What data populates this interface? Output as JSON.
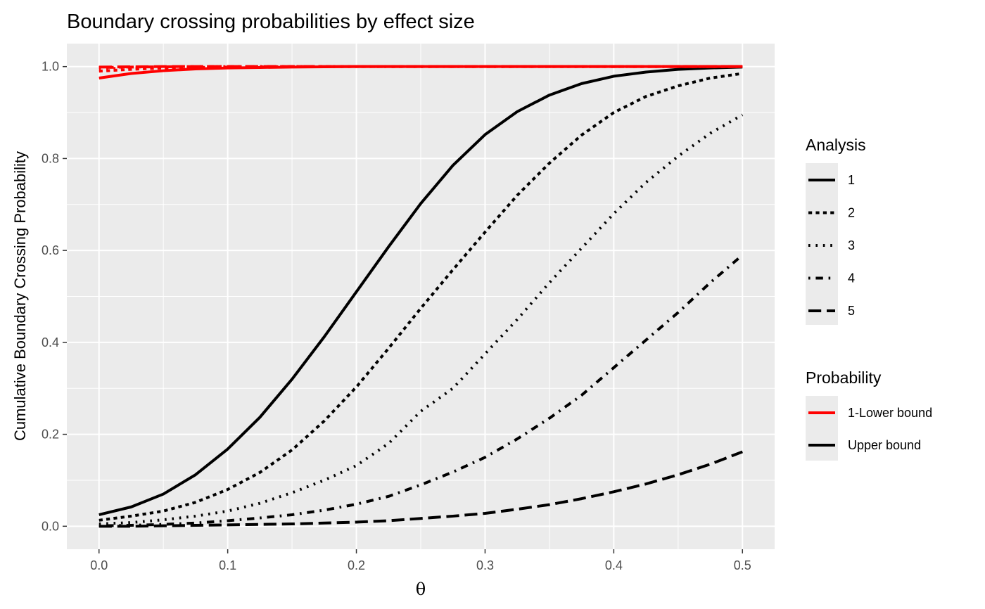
{
  "chart_data": {
    "type": "line",
    "title": "Boundary crossing probabilities by effect size",
    "xlabel": "θ",
    "ylabel": "Cumulative Boundary Crossing Probability",
    "xlim": [
      -0.025,
      0.525
    ],
    "ylim": [
      -0.05,
      1.05
    ],
    "x_ticks": [
      0.0,
      0.1,
      0.2,
      0.3,
      0.4,
      0.5
    ],
    "x_tick_labels": [
      "0.0",
      "0.1",
      "0.2",
      "0.3",
      "0.4",
      "0.5"
    ],
    "y_ticks": [
      0.0,
      0.2,
      0.4,
      0.6,
      0.8,
      1.0
    ],
    "y_tick_labels": [
      "0.0",
      "0.2",
      "0.4",
      "0.6",
      "0.8",
      "1.0"
    ],
    "grid": true,
    "x": [
      0,
      0.025,
      0.05,
      0.075,
      0.1,
      0.125,
      0.15,
      0.175,
      0.2,
      0.225,
      0.25,
      0.275,
      0.3,
      0.325,
      0.35,
      0.375,
      0.4,
      0.425,
      0.45,
      0.475,
      0.5
    ],
    "legend": {
      "position": "right",
      "analysis_title": "Analysis",
      "analysis_items": [
        "1",
        "2",
        "3",
        "4",
        "5"
      ],
      "probability_title": "Probability",
      "probability_items": [
        "1-Lower bound",
        "Upper bound"
      ]
    },
    "colors": {
      "lower": "#ff0000",
      "upper": "#000000",
      "panel": "#ebebeb",
      "grid": "#ffffff"
    },
    "series": [
      {
        "name": "1",
        "probability": "Upper bound",
        "linetype": "solid",
        "values": [
          0.025,
          0.042,
          0.07,
          0.112,
          0.168,
          0.237,
          0.32,
          0.412,
          0.51,
          0.608,
          0.702,
          0.785,
          0.852,
          0.902,
          0.938,
          0.963,
          0.979,
          0.988,
          0.994,
          0.997,
          0.999
        ]
      },
      {
        "name": "2",
        "probability": "Upper bound",
        "linetype": "22",
        "values": [
          0.013,
          0.022,
          0.033,
          0.052,
          0.08,
          0.117,
          0.166,
          0.229,
          0.303,
          0.387,
          0.474,
          0.558,
          0.64,
          0.72,
          0.79,
          0.851,
          0.9,
          0.935,
          0.958,
          0.975,
          0.985
        ]
      },
      {
        "name": "3",
        "probability": "Upper bound",
        "linetype": "13",
        "values": [
          0.005,
          0.008,
          0.014,
          0.022,
          0.033,
          0.05,
          0.073,
          0.1,
          0.132,
          0.18,
          0.25,
          0.3,
          0.375,
          0.45,
          0.53,
          0.605,
          0.68,
          0.748,
          0.805,
          0.855,
          0.895
        ]
      },
      {
        "name": "4",
        "probability": "Upper bound",
        "linetype": "1343",
        "values": [
          0.001,
          0.002,
          0.004,
          0.007,
          0.012,
          0.018,
          0.025,
          0.035,
          0.048,
          0.065,
          0.09,
          0.118,
          0.15,
          0.19,
          0.235,
          0.285,
          0.345,
          0.405,
          0.465,
          0.53,
          0.59
        ]
      },
      {
        "name": "5",
        "probability": "Upper bound",
        "linetype": "73",
        "values": [
          0.0,
          0.0,
          0.001,
          0.002,
          0.003,
          0.004,
          0.005,
          0.007,
          0.009,
          0.012,
          0.017,
          0.022,
          0.028,
          0.037,
          0.047,
          0.06,
          0.075,
          0.092,
          0.112,
          0.135,
          0.162
        ]
      },
      {
        "name": "1",
        "probability": "1-Lower bound",
        "linetype": "solid",
        "values": [
          0.975,
          0.985,
          0.991,
          0.995,
          0.997,
          0.998,
          0.999,
          0.9995,
          1.0,
          1.0,
          1.0,
          1.0,
          1.0,
          1.0,
          1.0,
          1.0,
          1.0,
          1.0,
          1.0,
          1.0,
          1.0
        ]
      },
      {
        "name": "2",
        "probability": "1-Lower bound",
        "linetype": "22",
        "values": [
          0.99,
          0.994,
          0.997,
          0.998,
          0.999,
          0.9995,
          1.0,
          1.0,
          1.0,
          1.0,
          1.0,
          1.0,
          1.0,
          1.0,
          1.0,
          1.0,
          1.0,
          1.0,
          1.0,
          1.0,
          1.0
        ]
      },
      {
        "name": "3",
        "probability": "1-Lower bound",
        "linetype": "13",
        "values": [
          0.995,
          0.997,
          0.999,
          0.9995,
          1.0,
          1.0,
          1.0,
          1.0,
          1.0,
          1.0,
          1.0,
          1.0,
          1.0,
          1.0,
          1.0,
          1.0,
          1.0,
          1.0,
          1.0,
          1.0,
          1.0
        ]
      },
      {
        "name": "4",
        "probability": "1-Lower bound",
        "linetype": "1343",
        "values": [
          0.998,
          0.999,
          0.9995,
          1.0,
          1.0,
          1.0,
          1.0,
          1.0,
          1.0,
          1.0,
          1.0,
          1.0,
          1.0,
          1.0,
          1.0,
          1.0,
          1.0,
          1.0,
          1.0,
          1.0,
          1.0
        ]
      },
      {
        "name": "5",
        "probability": "1-Lower bound",
        "linetype": "73",
        "values": [
          0.999,
          0.9995,
          1.0,
          1.0,
          1.0,
          1.0,
          1.0,
          1.0,
          1.0,
          1.0,
          1.0,
          1.0,
          1.0,
          1.0,
          1.0,
          1.0,
          1.0,
          1.0,
          1.0,
          1.0,
          1.0
        ]
      }
    ]
  }
}
